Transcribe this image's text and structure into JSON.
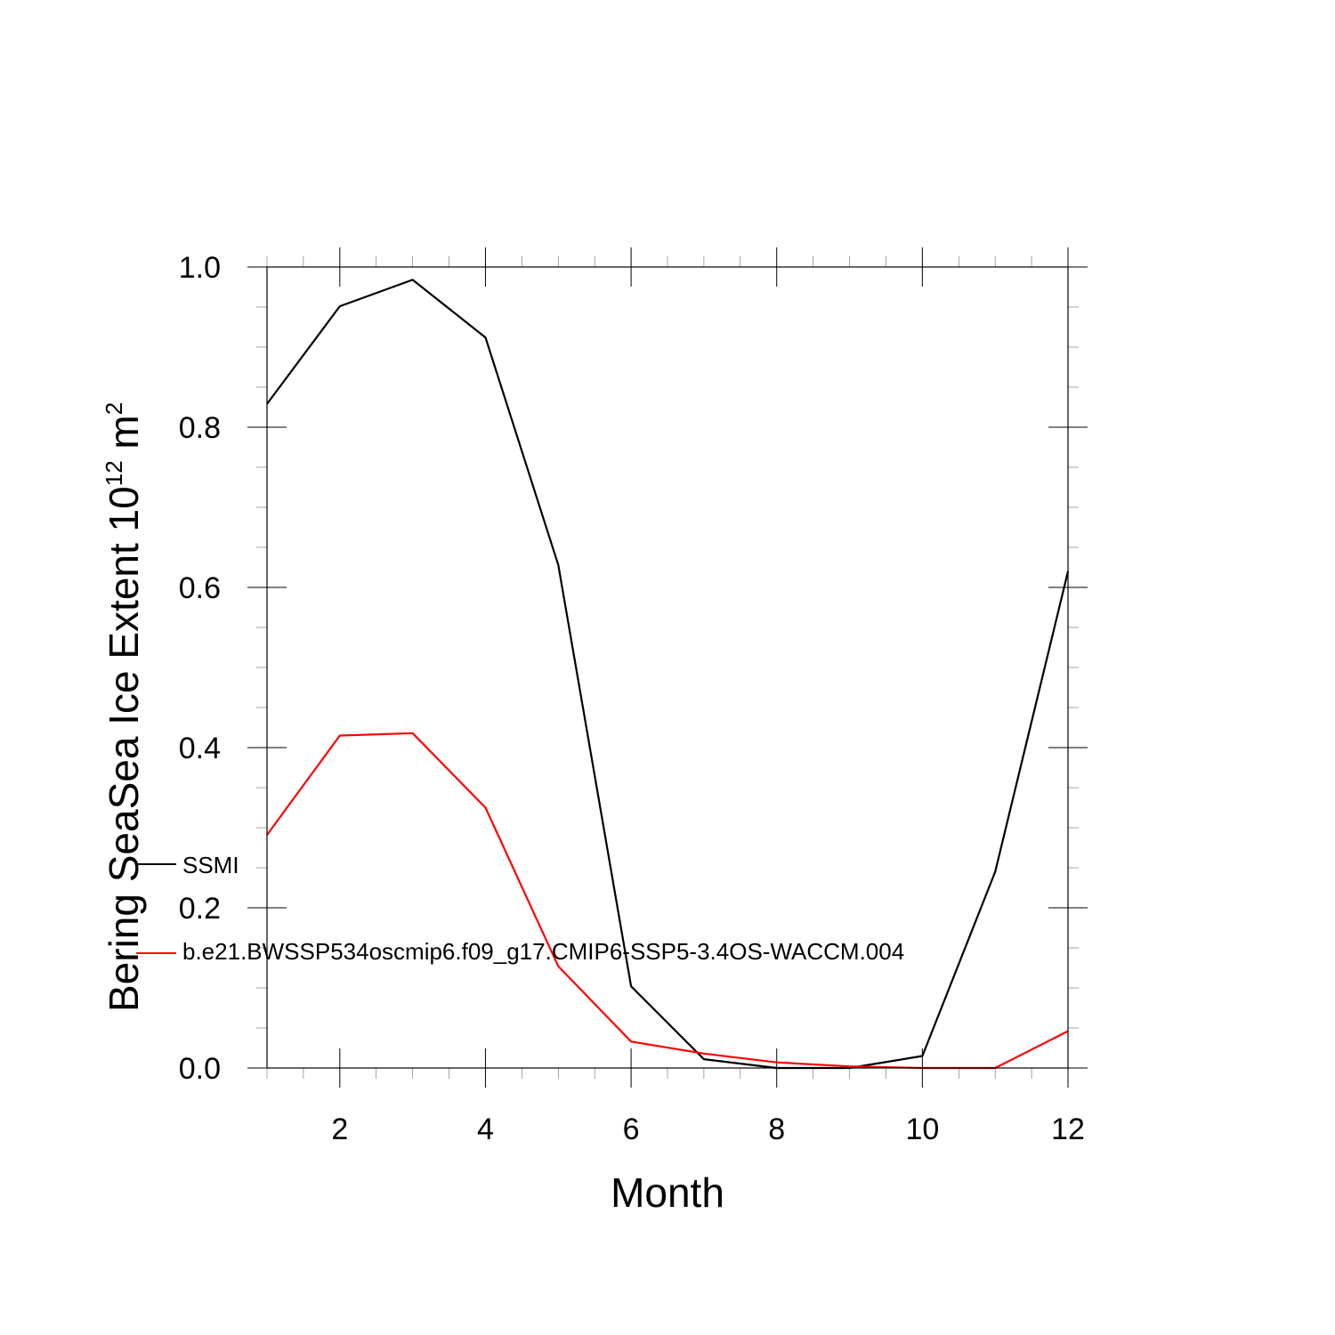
{
  "chart_data": {
    "type": "line",
    "title": "",
    "xlabel": "Month",
    "ylabel": {
      "main": "Bering SeaSea Ice Extent 10",
      "exponent": "12",
      "unit_base": " m",
      "unit_exponent": "2"
    },
    "xlim": [
      1,
      12
    ],
    "ylim": [
      0,
      1
    ],
    "x_ticks": [
      2,
      4,
      6,
      8,
      10,
      12
    ],
    "x_tick_labels": [
      "2",
      "4",
      "6",
      "8",
      "10",
      "12"
    ],
    "y_ticks": [
      0,
      0.2,
      0.4,
      0.6,
      0.8,
      1.0
    ],
    "y_tick_labels": [
      "0.0",
      "0.2",
      "0.4",
      "0.6",
      "0.8",
      "1.0"
    ],
    "x": [
      1,
      2,
      3,
      4,
      5,
      6,
      7,
      8,
      9,
      10,
      11,
      12
    ],
    "series": [
      {
        "name": "SSMI",
        "color": "#000000",
        "values": [
          0.829,
          0.951,
          0.984,
          0.912,
          0.628,
          0.102,
          0.011,
          0.0,
          0.0,
          0.015,
          0.245,
          0.62
        ]
      },
      {
        "name": "b.e21.BWSSP534oscmip6.f09_g17.CMIP6-SSP5-3.4OS-WACCM.004",
        "color": "#ff0000",
        "values": [
          0.291,
          0.415,
          0.418,
          0.325,
          0.127,
          0.033,
          0.018,
          0.007,
          0.002,
          0.0,
          0.0,
          0.046
        ]
      }
    ],
    "grid": false,
    "legend_position": "lower-left, inside plot"
  }
}
